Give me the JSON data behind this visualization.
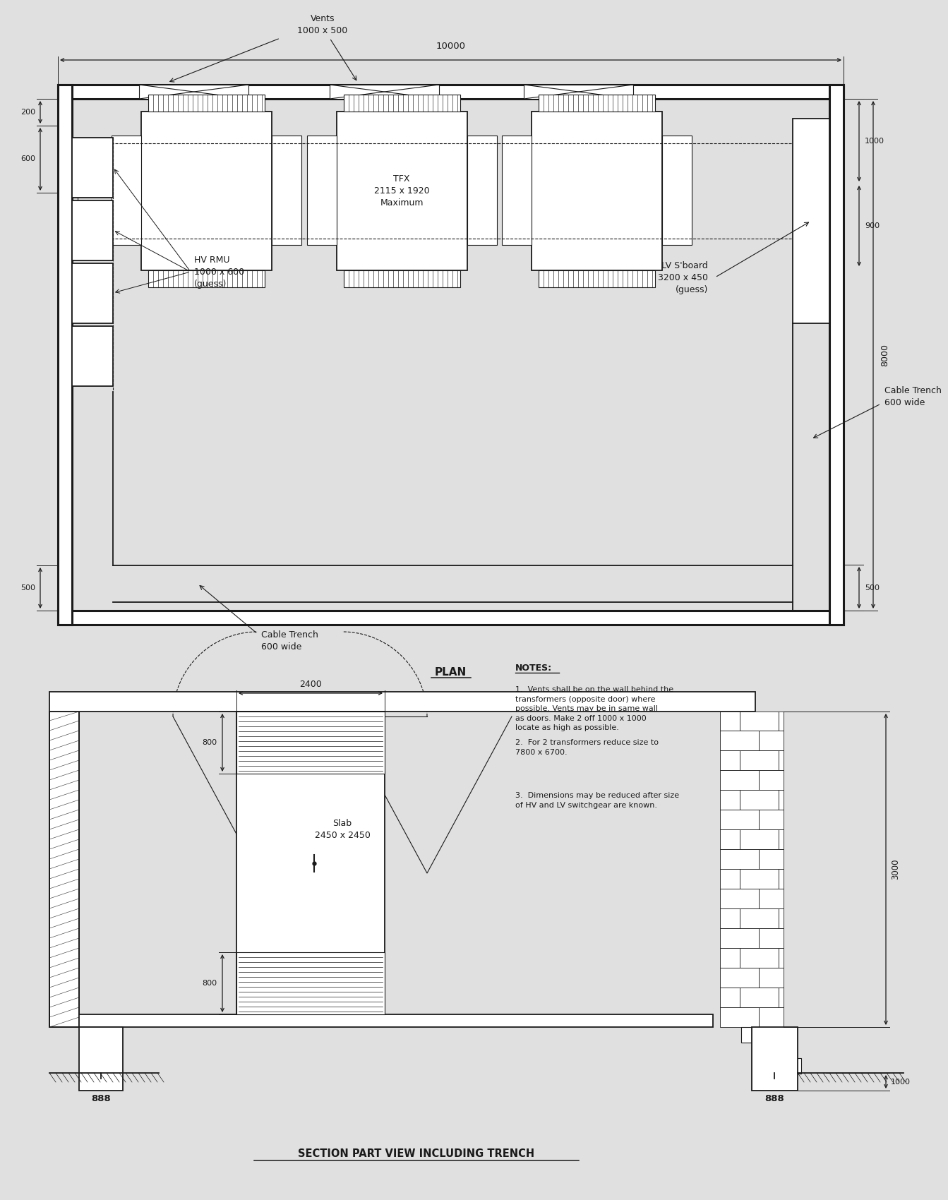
{
  "bg_color": "#e0e0e0",
  "line_color": "#1a1a1a",
  "plan_title": "PLAN",
  "section_title": "SECTION PART VIEW INCLUDING TRENCH",
  "notes_title": "NOTES:",
  "notes": [
    "Vents shall be on the wall behind the\ntransformers (opposite door) where\npossible. Vents may be in same wall\nas doors. Make 2 off 1000 x 1000\nlocate as high as possible.",
    "For 2 transformers reduce size to\n7800 x 6700.",
    "Dimensions may be reduced after size\nof HV and LV switchgear are known."
  ],
  "tfx_label": "TFX\n2115 x 1920\nMaximum",
  "hv_label": "HV RMU\n1000 x 600\n(guess)",
  "lv_label": "LV S'board\n3200 x 450\n(guess)",
  "cable_trench_label1": "Cable Trench\n600 wide",
  "cable_trench_label2": "Cable Trench\n600 wide",
  "vents_label": "Vents\n1000 x 500",
  "slab_label": "Slab\n2450 x 2450",
  "dim_10000": "10000",
  "dim_8000": "8000",
  "dim_1000": "1000",
  "dim_900": "900",
  "dim_200": "200",
  "dim_600": "600",
  "dim_500a": "500",
  "dim_500b": "500",
  "dim_2400": "2400",
  "dim_800a": "800",
  "dim_800b": "800",
  "dim_3000": "3000",
  "dim_1000b": "1000",
  "dim_888": "888"
}
